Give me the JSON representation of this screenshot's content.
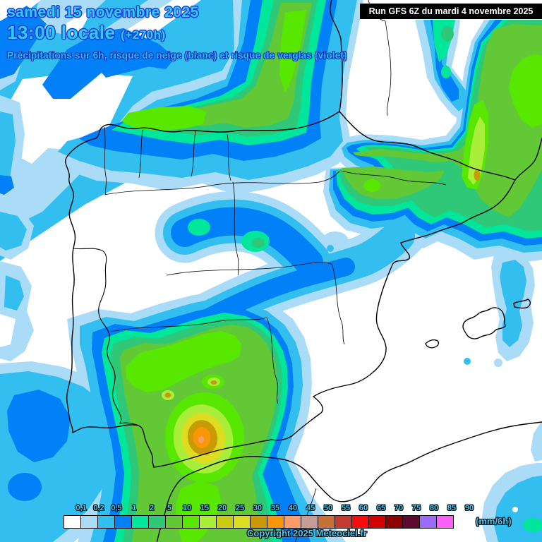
{
  "header": {
    "date_line": "samedi 15 novembre 2025",
    "time_line": "13:00 locale",
    "time_offset": "(+270h)",
    "subtitle": "Précipitations sur 6h, risque de neige (blanc) et risque de verglas (violet)",
    "run_info": "Run GFS 6Z du mardi 4 novembre 2025"
  },
  "footer": {
    "copyright": "Copyright 2025 Meteociel.fr"
  },
  "legend": {
    "unit_label": "(mm/6h)",
    "labels": [
      "0,1",
      "0,2",
      "0,5",
      "1",
      "2",
      "5",
      "10",
      "15",
      "20",
      "25",
      "30",
      "35",
      "40",
      "45",
      "50",
      "55",
      "60",
      "65",
      "70",
      "75",
      "80",
      "85",
      "90"
    ],
    "colors": [
      "#FFFFFF",
      "#AADCF7",
      "#33BEF0",
      "#0280F8",
      "#00E69B",
      "#2EC878",
      "#63C836",
      "#58E800",
      "#AAEE3C",
      "#C9CC12",
      "#DCDC20",
      "#C89A04",
      "#F89608",
      "#FA9C6B",
      "#C69C96",
      "#C87136",
      "#C23A30",
      "#FA0A0A",
      "#D20000",
      "#8E0000",
      "#5E0A2E",
      "#9B6BFA",
      "#FA5FFA"
    ]
  },
  "colors": {
    "title_fill": "#2CCFF4",
    "title_outline": "#2138D6",
    "legend_label_fill": "#49CBF5",
    "sea_no_precip": "#FFFFFF",
    "coastline": "#000000"
  },
  "map": {
    "region": "Iberian Peninsula, Balearic Islands, southern France, northern Africa",
    "precip_levels_mm_6h_shown": [
      "0.1-0.5 light blue offshore bands",
      "0.5-2 blue bands north coast and central diagonal",
      "2-15 greens over Cantabria, Pyrenees, Catalonia and Andalusia",
      "15-40 yellow to orange core over eastern Andalusia",
      "40-45 small salmon maximum near Málaga/Granada area"
    ]
  }
}
